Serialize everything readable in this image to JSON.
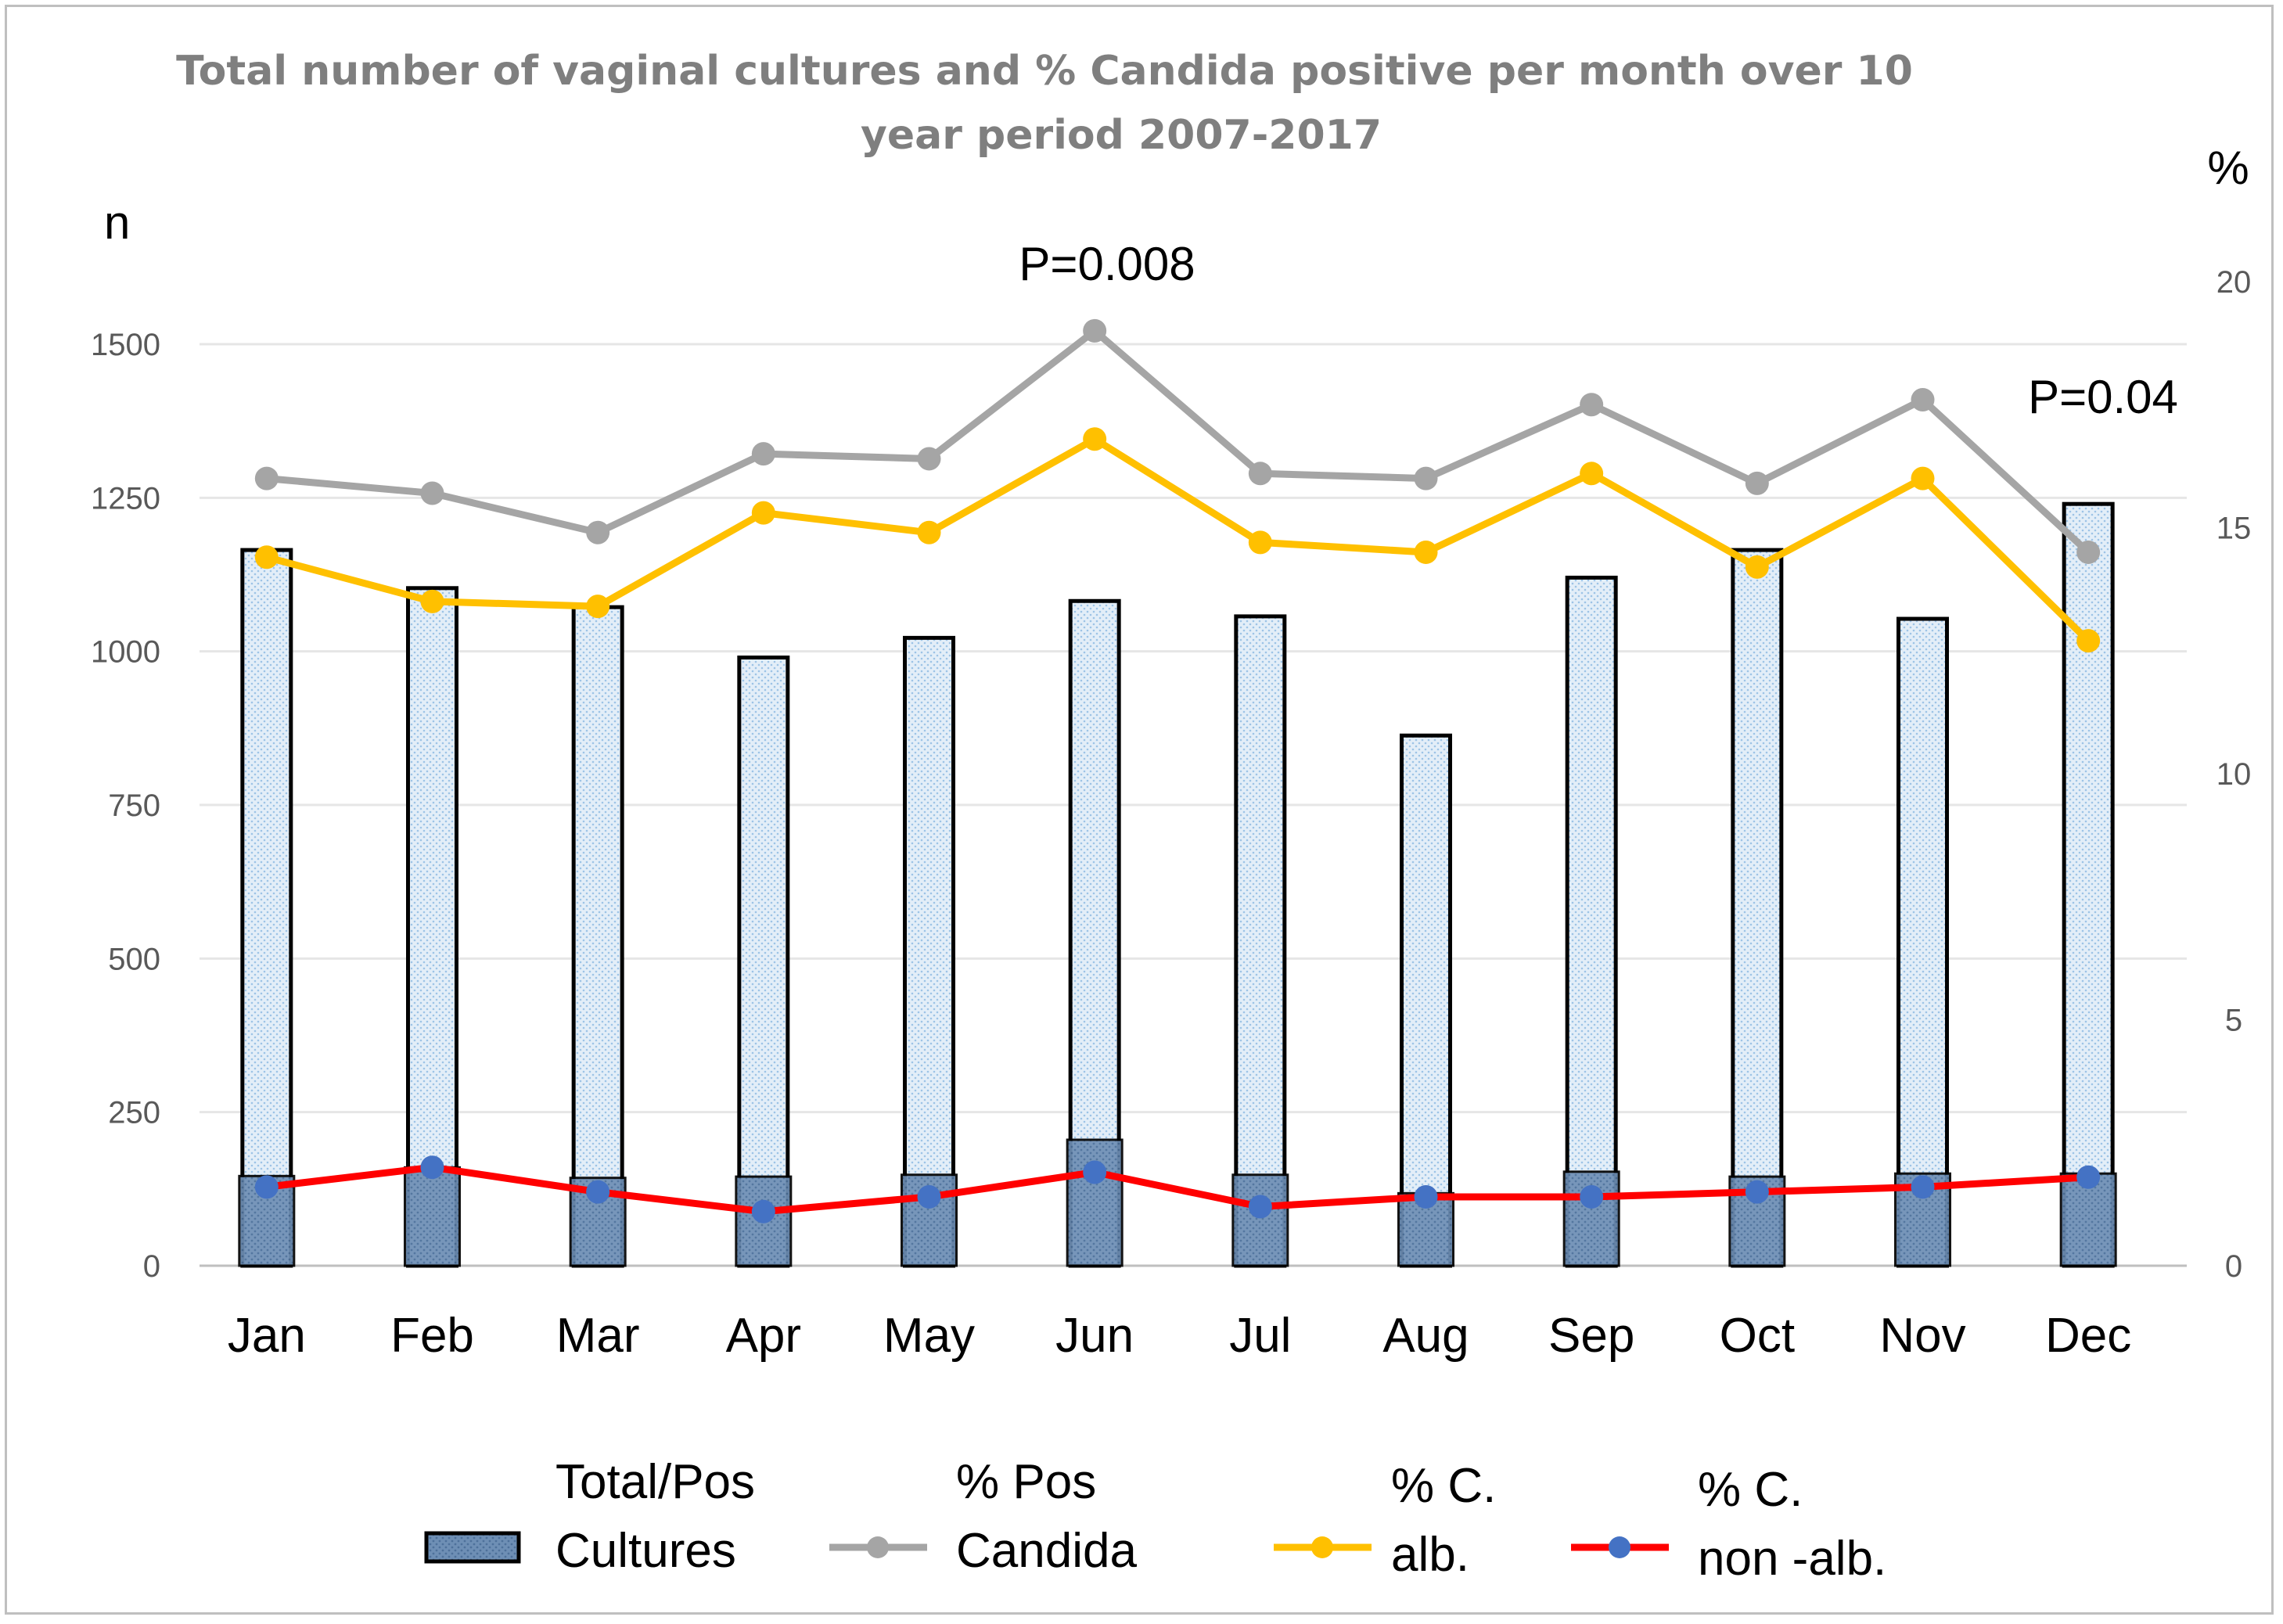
{
  "chart_data": {
    "type": "bar",
    "title": [
      "Total number of vaginal cultures and % Candida positive per month over 10",
      "year period 2007-2017"
    ],
    "categories": [
      "Jan",
      "Feb",
      "Mar",
      "Apr",
      "May",
      "Jun",
      "Jul",
      "Aug",
      "Sep",
      "Oct",
      "Nov",
      "Dec"
    ],
    "y_left": {
      "label": "n",
      "min": 0,
      "max": 1500,
      "ticks": [
        0,
        250,
        500,
        750,
        1000,
        1250,
        1500
      ],
      "tick_labels": [
        "0",
        "250",
        "500",
        "750",
        "1000",
        "1250",
        "1500"
      ]
    },
    "y_right": {
      "label": "%",
      "min": 0,
      "max": 20,
      "ticks": [
        0,
        5,
        10,
        15,
        20
      ],
      "tick_labels": [
        "0",
        "5",
        "10",
        "15",
        "20"
      ]
    },
    "grid": true,
    "bars": {
      "name": "Total/Pos Cultures",
      "total": [
        1165,
        1103,
        1072,
        990,
        1022,
        1082,
        1057,
        863,
        1120,
        1165,
        1053,
        1240
      ],
      "positive": [
        146,
        160,
        143,
        145,
        148,
        205,
        148,
        118,
        153,
        145,
        150,
        150
      ]
    },
    "series": [
      {
        "name": "% Pos Candida",
        "axis": "right",
        "color": "#a5a5a5",
        "values": [
          16.0,
          15.7,
          14.9,
          16.5,
          16.4,
          19.0,
          16.1,
          16.0,
          17.5,
          15.9,
          17.6,
          14.5
        ]
      },
      {
        "name": "% C. alb.",
        "axis": "right",
        "color": "#ffc000",
        "values": [
          14.4,
          13.5,
          13.4,
          15.3,
          14.9,
          16.8,
          14.7,
          14.5,
          16.1,
          14.2,
          16.0,
          12.7
        ]
      },
      {
        "name": "% C. non-alb.",
        "axis": "right",
        "color": "#ff0000",
        "marker_color": "#4472c4",
        "values": [
          1.6,
          2.0,
          1.5,
          1.1,
          1.4,
          1.9,
          1.2,
          1.4,
          1.4,
          1.5,
          1.6,
          1.8
        ]
      }
    ],
    "annotations": [
      {
        "text": "P=0.008",
        "category": "Jun"
      },
      {
        "text": "P=0.04",
        "category": "Dec"
      }
    ],
    "legend": [
      {
        "key": "bars",
        "lines": [
          "Total/Pos",
          "Cultures"
        ]
      },
      {
        "key": "pos",
        "lines": [
          "% Pos",
          "Candida"
        ]
      },
      {
        "key": "alb",
        "lines": [
          "% C.",
          "alb."
        ]
      },
      {
        "key": "nonalb",
        "lines": [
          "% C.",
          "non -alb."
        ]
      }
    ],
    "legend_position": "bottom"
  }
}
